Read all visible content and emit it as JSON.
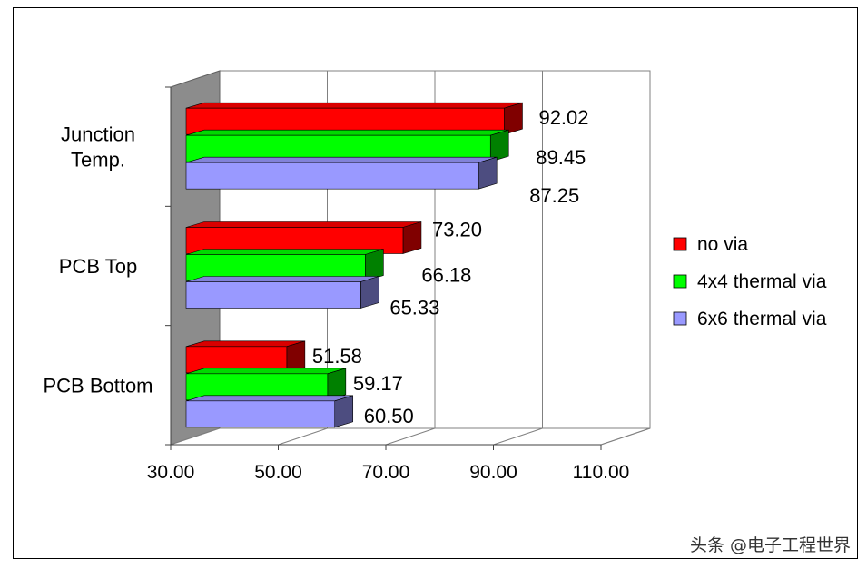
{
  "chart_data": {
    "type": "bar",
    "orientation": "horizontal",
    "style": "3d",
    "categories": [
      "Junction Temp.",
      "PCB Top",
      "PCB Bottom"
    ],
    "series": [
      {
        "name": "no via",
        "color": "#ff0000",
        "values": [
          92.02,
          73.2,
          51.58
        ]
      },
      {
        "name": "4x4 thermal via",
        "color": "#00ff00",
        "values": [
          89.45,
          66.18,
          59.17
        ]
      },
      {
        "name": "6x6 thermal via",
        "color": "#9999ff",
        "values": [
          87.25,
          65.33,
          60.5
        ]
      }
    ],
    "value_labels": [
      [
        "92.02",
        "89.45",
        "87.25"
      ],
      [
        "73.20",
        "66.18",
        "65.33"
      ],
      [
        "51.58",
        "59.17",
        "60.50"
      ]
    ],
    "xlim": [
      30,
      110
    ],
    "xticks": [
      "30.00",
      "50.00",
      "70.00",
      "90.00",
      "110.00"
    ],
    "xtick_values": [
      30,
      50,
      70,
      90,
      110
    ],
    "grid": "vertical",
    "legend_position": "right"
  },
  "watermark": "头条 @电子工程世界"
}
